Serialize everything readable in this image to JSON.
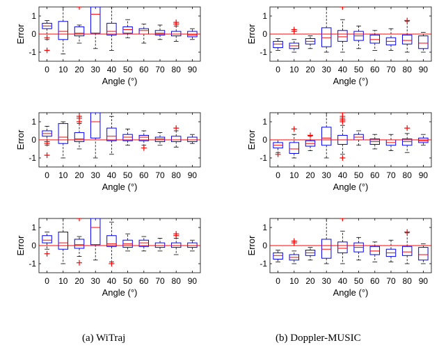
{
  "captions": [
    "(a) WiTraj",
    "(b) Doppler-MUSIC"
  ],
  "chart_data": [
    {
      "type": "box",
      "column": 0,
      "row": 0,
      "xlabel": "Angle (°)",
      "ylabel": "Error",
      "categories": [
        "0",
        "10",
        "20",
        "30",
        "40",
        "50",
        "60",
        "70",
        "80",
        "90"
      ],
      "ylim": [
        -1.5,
        1.5
      ],
      "yticks": [
        -1,
        0,
        1
      ],
      "reference_line": 0,
      "boxes": [
        {
          "low": -0.3,
          "q1": 0.3,
          "median": 0.45,
          "q3": 0.6,
          "high": 0.75,
          "outliers": [
            -0.9,
            -0.2
          ]
        },
        {
          "low": -1.1,
          "q1": -0.3,
          "median": 0.15,
          "q3": 0.7,
          "high": 1.5,
          "outliers": []
        },
        {
          "low": -0.5,
          "q1": -0.1,
          "median": 0.05,
          "q3": 0.4,
          "high": 0.5,
          "outliers": [
            1.5
          ]
        },
        {
          "low": -0.8,
          "q1": 0.05,
          "median": 1.1,
          "q3": 1.5,
          "high": 1.5,
          "outliers": []
        },
        {
          "low": -0.9,
          "q1": -0.05,
          "median": 0.15,
          "q3": 0.6,
          "high": 1.5,
          "outliers": []
        },
        {
          "low": -0.2,
          "q1": 0.05,
          "median": 0.25,
          "q3": 0.4,
          "high": 0.8,
          "outliers": []
        },
        {
          "low": -0.5,
          "q1": 0.0,
          "median": 0.2,
          "q3": 0.3,
          "high": 0.55,
          "outliers": []
        },
        {
          "low": -0.3,
          "q1": -0.05,
          "median": 0.05,
          "q3": 0.2,
          "high": 0.5,
          "outliers": []
        },
        {
          "low": -0.4,
          "q1": -0.1,
          "median": 0.0,
          "q3": 0.15,
          "high": 0.45,
          "outliers": [
            0.55,
            0.65
          ]
        },
        {
          "low": -0.3,
          "q1": -0.15,
          "median": -0.05,
          "q3": 0.15,
          "high": 0.3,
          "outliers": []
        }
      ]
    },
    {
      "type": "box",
      "column": 0,
      "row": 1,
      "xlabel": "Angle (°)",
      "ylabel": "Error",
      "categories": [
        "0",
        "10",
        "20",
        "30",
        "40",
        "50",
        "60",
        "70",
        "80",
        "90"
      ],
      "ylim": [
        -1.5,
        1.5
      ],
      "yticks": [
        -1,
        0,
        1
      ],
      "reference_line": 0,
      "boxes": [
        {
          "low": -0.3,
          "q1": 0.2,
          "median": 0.35,
          "q3": 0.5,
          "high": 0.75,
          "outliers": [
            -0.85,
            -0.2,
            -0.1
          ]
        },
        {
          "low": -1.0,
          "q1": -0.2,
          "median": 0.15,
          "q3": 0.9,
          "high": 1.0,
          "outliers": []
        },
        {
          "low": -0.5,
          "q1": -0.1,
          "median": 0.05,
          "q3": 0.4,
          "high": 0.9,
          "outliers": [
            1.0,
            1.2,
            1.3
          ]
        },
        {
          "low": -1.0,
          "q1": 0.1,
          "median": 1.0,
          "q3": 1.5,
          "high": 1.5,
          "outliers": []
        },
        {
          "low": -0.8,
          "q1": -0.05,
          "median": 0.2,
          "q3": 0.65,
          "high": 1.3,
          "outliers": []
        },
        {
          "low": -0.3,
          "q1": -0.05,
          "median": 0.15,
          "q3": 0.3,
          "high": 0.6,
          "outliers": []
        },
        {
          "low": -0.3,
          "q1": -0.05,
          "median": 0.15,
          "q3": 0.25,
          "high": 0.5,
          "outliers": [
            -0.45
          ]
        },
        {
          "low": -0.3,
          "q1": -0.1,
          "median": 0.05,
          "q3": 0.15,
          "high": 0.4,
          "outliers": []
        },
        {
          "low": -0.4,
          "q1": -0.1,
          "median": 0.0,
          "q3": 0.2,
          "high": 0.5,
          "outliers": [
            0.65
          ]
        },
        {
          "low": -0.2,
          "q1": -0.1,
          "median": 0.0,
          "q3": 0.15,
          "high": 0.3,
          "outliers": []
        }
      ]
    },
    {
      "type": "box",
      "column": 0,
      "row": 2,
      "xlabel": "Angle (°)",
      "ylabel": "Error",
      "categories": [
        "0",
        "10",
        "20",
        "30",
        "40",
        "50",
        "60",
        "70",
        "80",
        "90"
      ],
      "ylim": [
        -1.5,
        1.5
      ],
      "yticks": [
        -1,
        0,
        1
      ],
      "reference_line": 0,
      "boxes": [
        {
          "low": -0.2,
          "q1": 0.15,
          "median": 0.3,
          "q3": 0.55,
          "high": 0.75,
          "outliers": [
            -0.45
          ]
        },
        {
          "low": -1.0,
          "q1": -0.2,
          "median": 0.15,
          "q3": 0.75,
          "high": 1.5,
          "outliers": []
        },
        {
          "low": -0.6,
          "q1": -0.15,
          "median": 0.05,
          "q3": 0.35,
          "high": 0.5,
          "outliers": [
            -0.95,
            1.5
          ]
        },
        {
          "low": -0.8,
          "q1": 0.05,
          "median": 1.0,
          "q3": 1.5,
          "high": 1.5,
          "outliers": []
        },
        {
          "low": -0.9,
          "q1": -0.05,
          "median": 0.1,
          "q3": 0.55,
          "high": 1.3,
          "outliers": [
            -1.0
          ]
        },
        {
          "low": -0.3,
          "q1": -0.1,
          "median": 0.1,
          "q3": 0.3,
          "high": 0.65,
          "outliers": []
        },
        {
          "low": -0.3,
          "q1": -0.05,
          "median": 0.15,
          "q3": 0.3,
          "high": 0.5,
          "outliers": []
        },
        {
          "low": -0.3,
          "q1": -0.1,
          "median": 0.0,
          "q3": 0.15,
          "high": 0.4,
          "outliers": []
        },
        {
          "low": -0.5,
          "q1": -0.1,
          "median": 0.0,
          "q3": 0.15,
          "high": 0.4,
          "outliers": [
            0.55,
            0.65
          ]
        },
        {
          "low": -0.3,
          "q1": -0.1,
          "median": 0.0,
          "q3": 0.15,
          "high": 0.3,
          "outliers": []
        }
      ]
    },
    {
      "type": "box",
      "column": 1,
      "row": 0,
      "xlabel": "Angle (°)",
      "ylabel": "Error",
      "categories": [
        "0",
        "10",
        "20",
        "30",
        "40",
        "50",
        "60",
        "70",
        "80",
        "90"
      ],
      "ylim": [
        -1.5,
        1.5
      ],
      "yticks": [
        -1,
        0,
        1
      ],
      "reference_line": 0,
      "boxes": [
        {
          "low": -0.9,
          "q1": -0.75,
          "median": -0.55,
          "q3": -0.4,
          "high": -0.25,
          "outliers": []
        },
        {
          "low": -1.0,
          "q1": -0.8,
          "median": -0.65,
          "q3": -0.5,
          "high": -0.3,
          "outliers": [
            0.15,
            0.25
          ]
        },
        {
          "low": -0.8,
          "q1": -0.55,
          "median": -0.4,
          "q3": -0.25,
          "high": -0.1,
          "outliers": []
        },
        {
          "low": -1.0,
          "q1": -0.7,
          "median": -0.2,
          "q3": 0.35,
          "high": 1.5,
          "outliers": []
        },
        {
          "low": -1.0,
          "q1": -0.4,
          "median": -0.15,
          "q3": 0.2,
          "high": 0.8,
          "outliers": [
            1.5
          ]
        },
        {
          "low": -0.8,
          "q1": -0.35,
          "median": -0.1,
          "q3": 0.15,
          "high": 0.45,
          "outliers": []
        },
        {
          "low": -0.9,
          "q1": -0.5,
          "median": -0.3,
          "q3": -0.05,
          "high": 0.2,
          "outliers": []
        },
        {
          "low": -0.9,
          "q1": -0.6,
          "median": -0.4,
          "q3": -0.2,
          "high": 0.3,
          "outliers": []
        },
        {
          "low": -1.0,
          "q1": -0.55,
          "median": -0.35,
          "q3": -0.05,
          "high": 0.7,
          "outliers": [
            0.75
          ]
        },
        {
          "low": -1.0,
          "q1": -0.8,
          "median": -0.5,
          "q3": -0.1,
          "high": 0.1,
          "outliers": []
        }
      ]
    },
    {
      "type": "box",
      "column": 1,
      "row": 1,
      "xlabel": "Angle (°)",
      "ylabel": "Error",
      "categories": [
        "0",
        "10",
        "20",
        "30",
        "40",
        "50",
        "60",
        "70",
        "80",
        "90"
      ],
      "ylim": [
        -1.5,
        1.5
      ],
      "yticks": [
        -1,
        0,
        1
      ],
      "reference_line": 0,
      "boxes": [
        {
          "low": -0.7,
          "q1": -0.45,
          "median": -0.3,
          "q3": -0.15,
          "high": 0.0,
          "outliers": [
            -0.8
          ]
        },
        {
          "low": -1.0,
          "q1": -0.75,
          "median": -0.5,
          "q3": -0.15,
          "high": 0.3,
          "outliers": [
            0.6
          ]
        },
        {
          "low": -0.6,
          "q1": -0.35,
          "median": -0.2,
          "q3": -0.05,
          "high": 0.2,
          "outliers": [
            0.25
          ]
        },
        {
          "low": -1.0,
          "q1": -0.3,
          "median": 0.1,
          "q3": 0.7,
          "high": 1.5,
          "outliers": []
        },
        {
          "low": -0.8,
          "q1": -0.25,
          "median": 0.0,
          "q3": 0.25,
          "high": 0.8,
          "outliers": [
            -1.0,
            1.0,
            1.1,
            1.2,
            1.3,
            1.5
          ]
        },
        {
          "low": -0.3,
          "q1": 0.0,
          "median": 0.15,
          "q3": 0.3,
          "high": 0.5,
          "outliers": []
        },
        {
          "low": -0.5,
          "q1": -0.25,
          "median": -0.1,
          "q3": 0.05,
          "high": 0.3,
          "outliers": []
        },
        {
          "low": -0.6,
          "q1": -0.3,
          "median": -0.15,
          "q3": 0.0,
          "high": 0.3,
          "outliers": []
        },
        {
          "low": -0.7,
          "q1": -0.3,
          "median": -0.1,
          "q3": 0.05,
          "high": 0.35,
          "outliers": [
            0.65
          ]
        },
        {
          "low": -0.3,
          "q1": -0.15,
          "median": -0.05,
          "q3": 0.1,
          "high": 0.3,
          "outliers": []
        }
      ]
    },
    {
      "type": "box",
      "column": 1,
      "row": 2,
      "xlabel": "Angle (°)",
      "ylabel": "Error",
      "categories": [
        "0",
        "10",
        "20",
        "30",
        "40",
        "50",
        "60",
        "70",
        "80",
        "90"
      ],
      "ylim": [
        -1.5,
        1.5
      ],
      "yticks": [
        -1,
        0,
        1
      ],
      "reference_line": 0,
      "boxes": [
        {
          "low": -0.9,
          "q1": -0.75,
          "median": -0.55,
          "q3": -0.4,
          "high": -0.25,
          "outliers": []
        },
        {
          "low": -1.0,
          "q1": -0.8,
          "median": -0.65,
          "q3": -0.5,
          "high": -0.3,
          "outliers": [
            0.15,
            0.25
          ]
        },
        {
          "low": -0.8,
          "q1": -0.55,
          "median": -0.4,
          "q3": -0.25,
          "high": -0.1,
          "outliers": []
        },
        {
          "low": -1.0,
          "q1": -0.7,
          "median": -0.2,
          "q3": 0.35,
          "high": 1.5,
          "outliers": []
        },
        {
          "low": -1.0,
          "q1": -0.4,
          "median": -0.15,
          "q3": 0.2,
          "high": 0.8,
          "outliers": [
            1.5
          ]
        },
        {
          "low": -0.8,
          "q1": -0.35,
          "median": -0.1,
          "q3": 0.15,
          "high": 0.45,
          "outliers": []
        },
        {
          "low": -0.9,
          "q1": -0.5,
          "median": -0.3,
          "q3": -0.05,
          "high": 0.2,
          "outliers": []
        },
        {
          "low": -0.9,
          "q1": -0.6,
          "median": -0.4,
          "q3": -0.2,
          "high": 0.3,
          "outliers": []
        },
        {
          "low": -1.0,
          "q1": -0.55,
          "median": -0.35,
          "q3": -0.05,
          "high": 0.7,
          "outliers": [
            0.75
          ]
        },
        {
          "low": -1.0,
          "q1": -0.8,
          "median": -0.5,
          "q3": -0.1,
          "high": 0.1,
          "outliers": []
        }
      ]
    }
  ]
}
